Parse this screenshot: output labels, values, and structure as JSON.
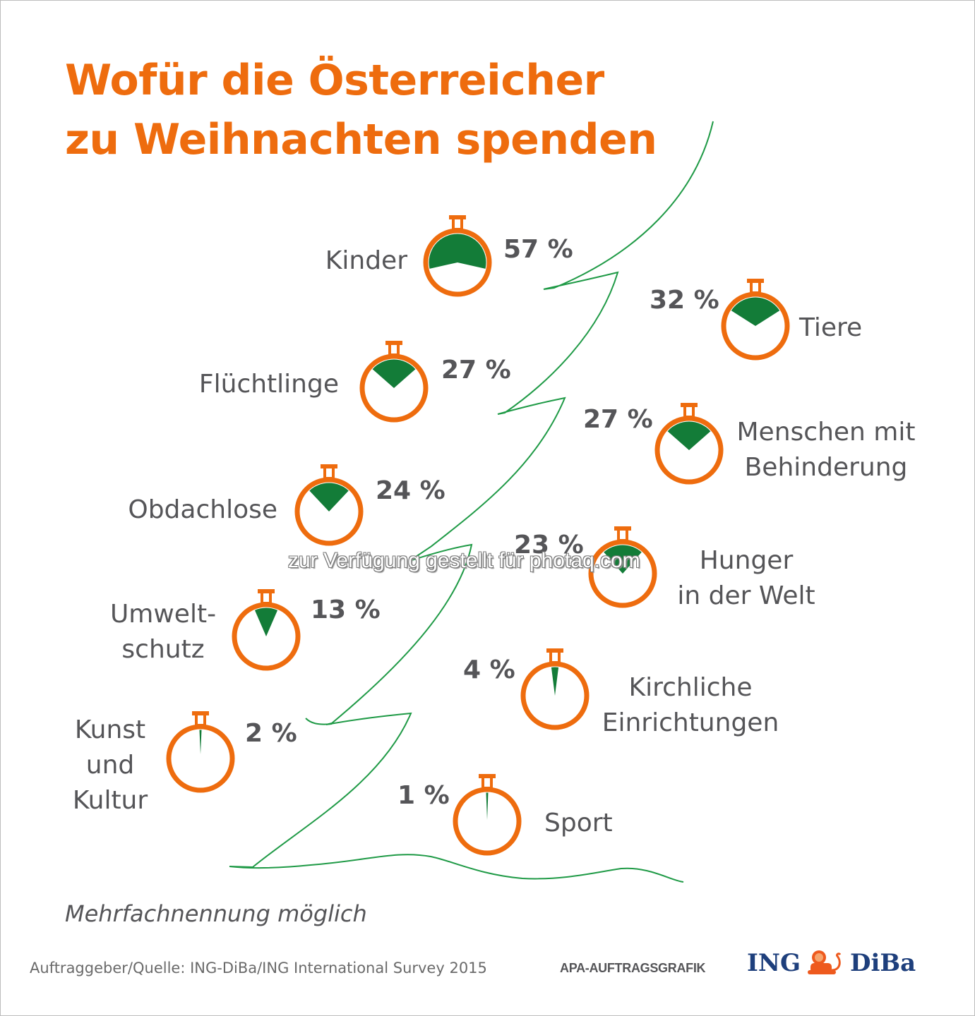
{
  "title": {
    "line1": "Wofür die Österreicher",
    "line2": "zu Weihnachten spenden"
  },
  "colors": {
    "accent_orange": "#ee6c0e",
    "fill_green": "#137c38",
    "tree_green": "#1f9a46",
    "text_gray": "#555558",
    "brand_blue": "#1e3f7c"
  },
  "chart_data": {
    "type": "pie",
    "title": "Wofür die Österreicher zu Weihnachten spenden",
    "subtitle": "",
    "unit": "%",
    "note": "Mehrfachnennung möglich",
    "categories": [
      "Kinder",
      "Tiere",
      "Flüchtlinge",
      "Menschen mit Behinderung",
      "Obdachlose",
      "Hunger in der Welt",
      "Umweltschutz",
      "Kirchliche Einrichtungen",
      "Kunst und Kultur",
      "Sport"
    ],
    "values": [
      57,
      32,
      27,
      27,
      24,
      23,
      13,
      4,
      2,
      1
    ],
    "items": [
      {
        "id": "kinder",
        "label_lines": [
          "Kinder"
        ],
        "value": 57,
        "value_label": "57 %"
      },
      {
        "id": "tiere",
        "label_lines": [
          "Tiere"
        ],
        "value": 32,
        "value_label": "32 %"
      },
      {
        "id": "fluechtlinge",
        "label_lines": [
          "Flüchtlinge"
        ],
        "value": 27,
        "value_label": "27 %"
      },
      {
        "id": "behinderung",
        "label_lines": [
          "Menschen mit",
          "Behinderung"
        ],
        "value": 27,
        "value_label": "27 %"
      },
      {
        "id": "obdachlose",
        "label_lines": [
          "Obdachlose"
        ],
        "value": 24,
        "value_label": "24 %"
      },
      {
        "id": "hunger",
        "label_lines": [
          "Hunger",
          "in der Welt"
        ],
        "value": 23,
        "value_label": "23 %"
      },
      {
        "id": "umwelt",
        "label_lines": [
          "Umwelt-",
          "schutz"
        ],
        "value": 13,
        "value_label": "13 %"
      },
      {
        "id": "kirche",
        "label_lines": [
          "Kirchliche",
          "Einrichtungen"
        ],
        "value": 4,
        "value_label": "4 %"
      },
      {
        "id": "kunst",
        "label_lines": [
          "Kunst",
          "und",
          "Kultur"
        ],
        "value": 2,
        "value_label": "2 %"
      },
      {
        "id": "sport",
        "label_lines": [
          "Sport"
        ],
        "value": 1,
        "value_label": "1 %"
      }
    ],
    "icon": "stopwatch-icon",
    "legend": "none",
    "decoration": "christmas-tree-outline"
  },
  "footer": {
    "note": "Mehrfachnennung möglich",
    "source": "Auftraggeber/Quelle: ING-DiBa/ING International Survey 2015",
    "apa": "APA-AUFTRAGSGRAFIK",
    "logo_left": "ING",
    "logo_right": "DiBa",
    "logo_icon": "lion-icon"
  },
  "watermark": "zur Verfügung gestellt für photaq.com"
}
